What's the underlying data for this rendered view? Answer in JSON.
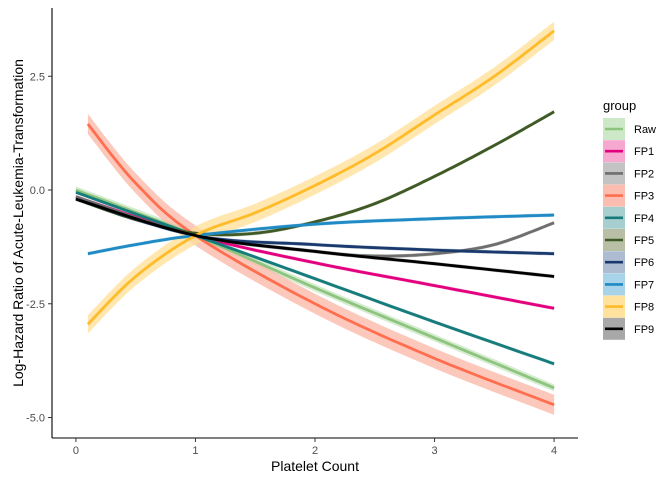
{
  "chart_data": {
    "type": "line",
    "xlabel": "Platelet Count",
    "ylabel": "Log-Hazard Ratio of Acute-Leukemia-Transformation",
    "xlim": [
      -0.2,
      4.2
    ],
    "ylim": [
      -5.45,
      4.0
    ],
    "x_ticks": [
      0,
      1,
      2,
      3,
      4
    ],
    "x_tick_labels": [
      "0",
      "1",
      "2",
      "3",
      "4"
    ],
    "y_ticks": [
      2.5,
      0.0,
      -2.5,
      -5.0
    ],
    "y_tick_labels": [
      "2.5",
      "0.0",
      "-2.5",
      "-5.0"
    ],
    "grid": false,
    "legend": {
      "title": "group",
      "position": "right"
    },
    "series": [
      {
        "name": "Raw",
        "color": "#8dc47e",
        "band_color": "#c7e6c0",
        "band_width": 0.08,
        "x": [
          0,
          1,
          2,
          3,
          4
        ],
        "y": [
          0.0,
          -1.0,
          -2.15,
          -3.25,
          -4.35
        ]
      },
      {
        "name": "FP1",
        "color": "#e3007f",
        "band_color": "#f59fcb",
        "band_width": 0.04,
        "x": [
          0,
          1,
          2,
          3,
          4
        ],
        "y": [
          -0.15,
          -1.0,
          -1.6,
          -2.1,
          -2.6
        ]
      },
      {
        "name": "FP2",
        "color": "#6e6e6e",
        "band_color": "#bdbdbd",
        "band_width": 0.04,
        "x": [
          0,
          1,
          2,
          2.5,
          3,
          3.5,
          4
        ],
        "y": [
          -0.15,
          -1.0,
          -1.35,
          -1.45,
          -1.4,
          -1.2,
          -0.72
        ]
      },
      {
        "name": "FP3",
        "color": "#ff6e4f",
        "band_color": "#fbb6a6",
        "band_width": 0.22,
        "x": [
          0.1,
          0.5,
          1,
          2,
          3,
          4
        ],
        "y": [
          1.45,
          0.15,
          -1.0,
          -2.5,
          -3.7,
          -4.72
        ]
      },
      {
        "name": "FP4",
        "color": "#167b7b",
        "band_color": "#9fcaca",
        "band_width": 0.04,
        "x": [
          0,
          1,
          2,
          3,
          4
        ],
        "y": [
          -0.05,
          -1.0,
          -1.95,
          -2.9,
          -3.82
        ]
      },
      {
        "name": "FP5",
        "color": "#3f5a26",
        "band_color": "#b0b89a",
        "band_width": 0.04,
        "x": [
          0,
          0.5,
          1,
          1.5,
          2,
          2.5,
          3,
          3.5,
          4
        ],
        "y": [
          -0.2,
          -0.65,
          -0.95,
          -0.95,
          -0.7,
          -0.3,
          0.3,
          0.98,
          1.72
        ]
      },
      {
        "name": "FP6",
        "color": "#1a3a6e",
        "band_color": "#a5b5cc",
        "band_width": 0.04,
        "x": [
          0,
          1,
          2,
          3,
          4
        ],
        "y": [
          -0.2,
          -1.0,
          -1.2,
          -1.32,
          -1.4
        ]
      },
      {
        "name": "FP7",
        "color": "#1f8ac4",
        "band_color": "#9ecfe7",
        "band_width": 0.04,
        "x": [
          0.1,
          0.5,
          1,
          2,
          3,
          4
        ],
        "y": [
          -1.4,
          -1.2,
          -1.0,
          -0.75,
          -0.63,
          -0.55
        ]
      },
      {
        "name": "FP8",
        "color": "#ffbb2a",
        "band_color": "#ffdf94",
        "band_width": 0.2,
        "x": [
          0.1,
          0.5,
          1,
          1.5,
          2,
          2.5,
          3,
          3.5,
          4
        ],
        "y": [
          -2.95,
          -1.9,
          -1.0,
          -0.5,
          0.1,
          0.8,
          1.65,
          2.5,
          3.5
        ]
      },
      {
        "name": "FP9",
        "color": "#000000",
        "band_color": "#9e9e9e",
        "band_width": 0.04,
        "x": [
          0,
          1,
          2,
          3,
          4
        ],
        "y": [
          -0.2,
          -1.0,
          -1.35,
          -1.62,
          -1.9
        ]
      }
    ]
  }
}
